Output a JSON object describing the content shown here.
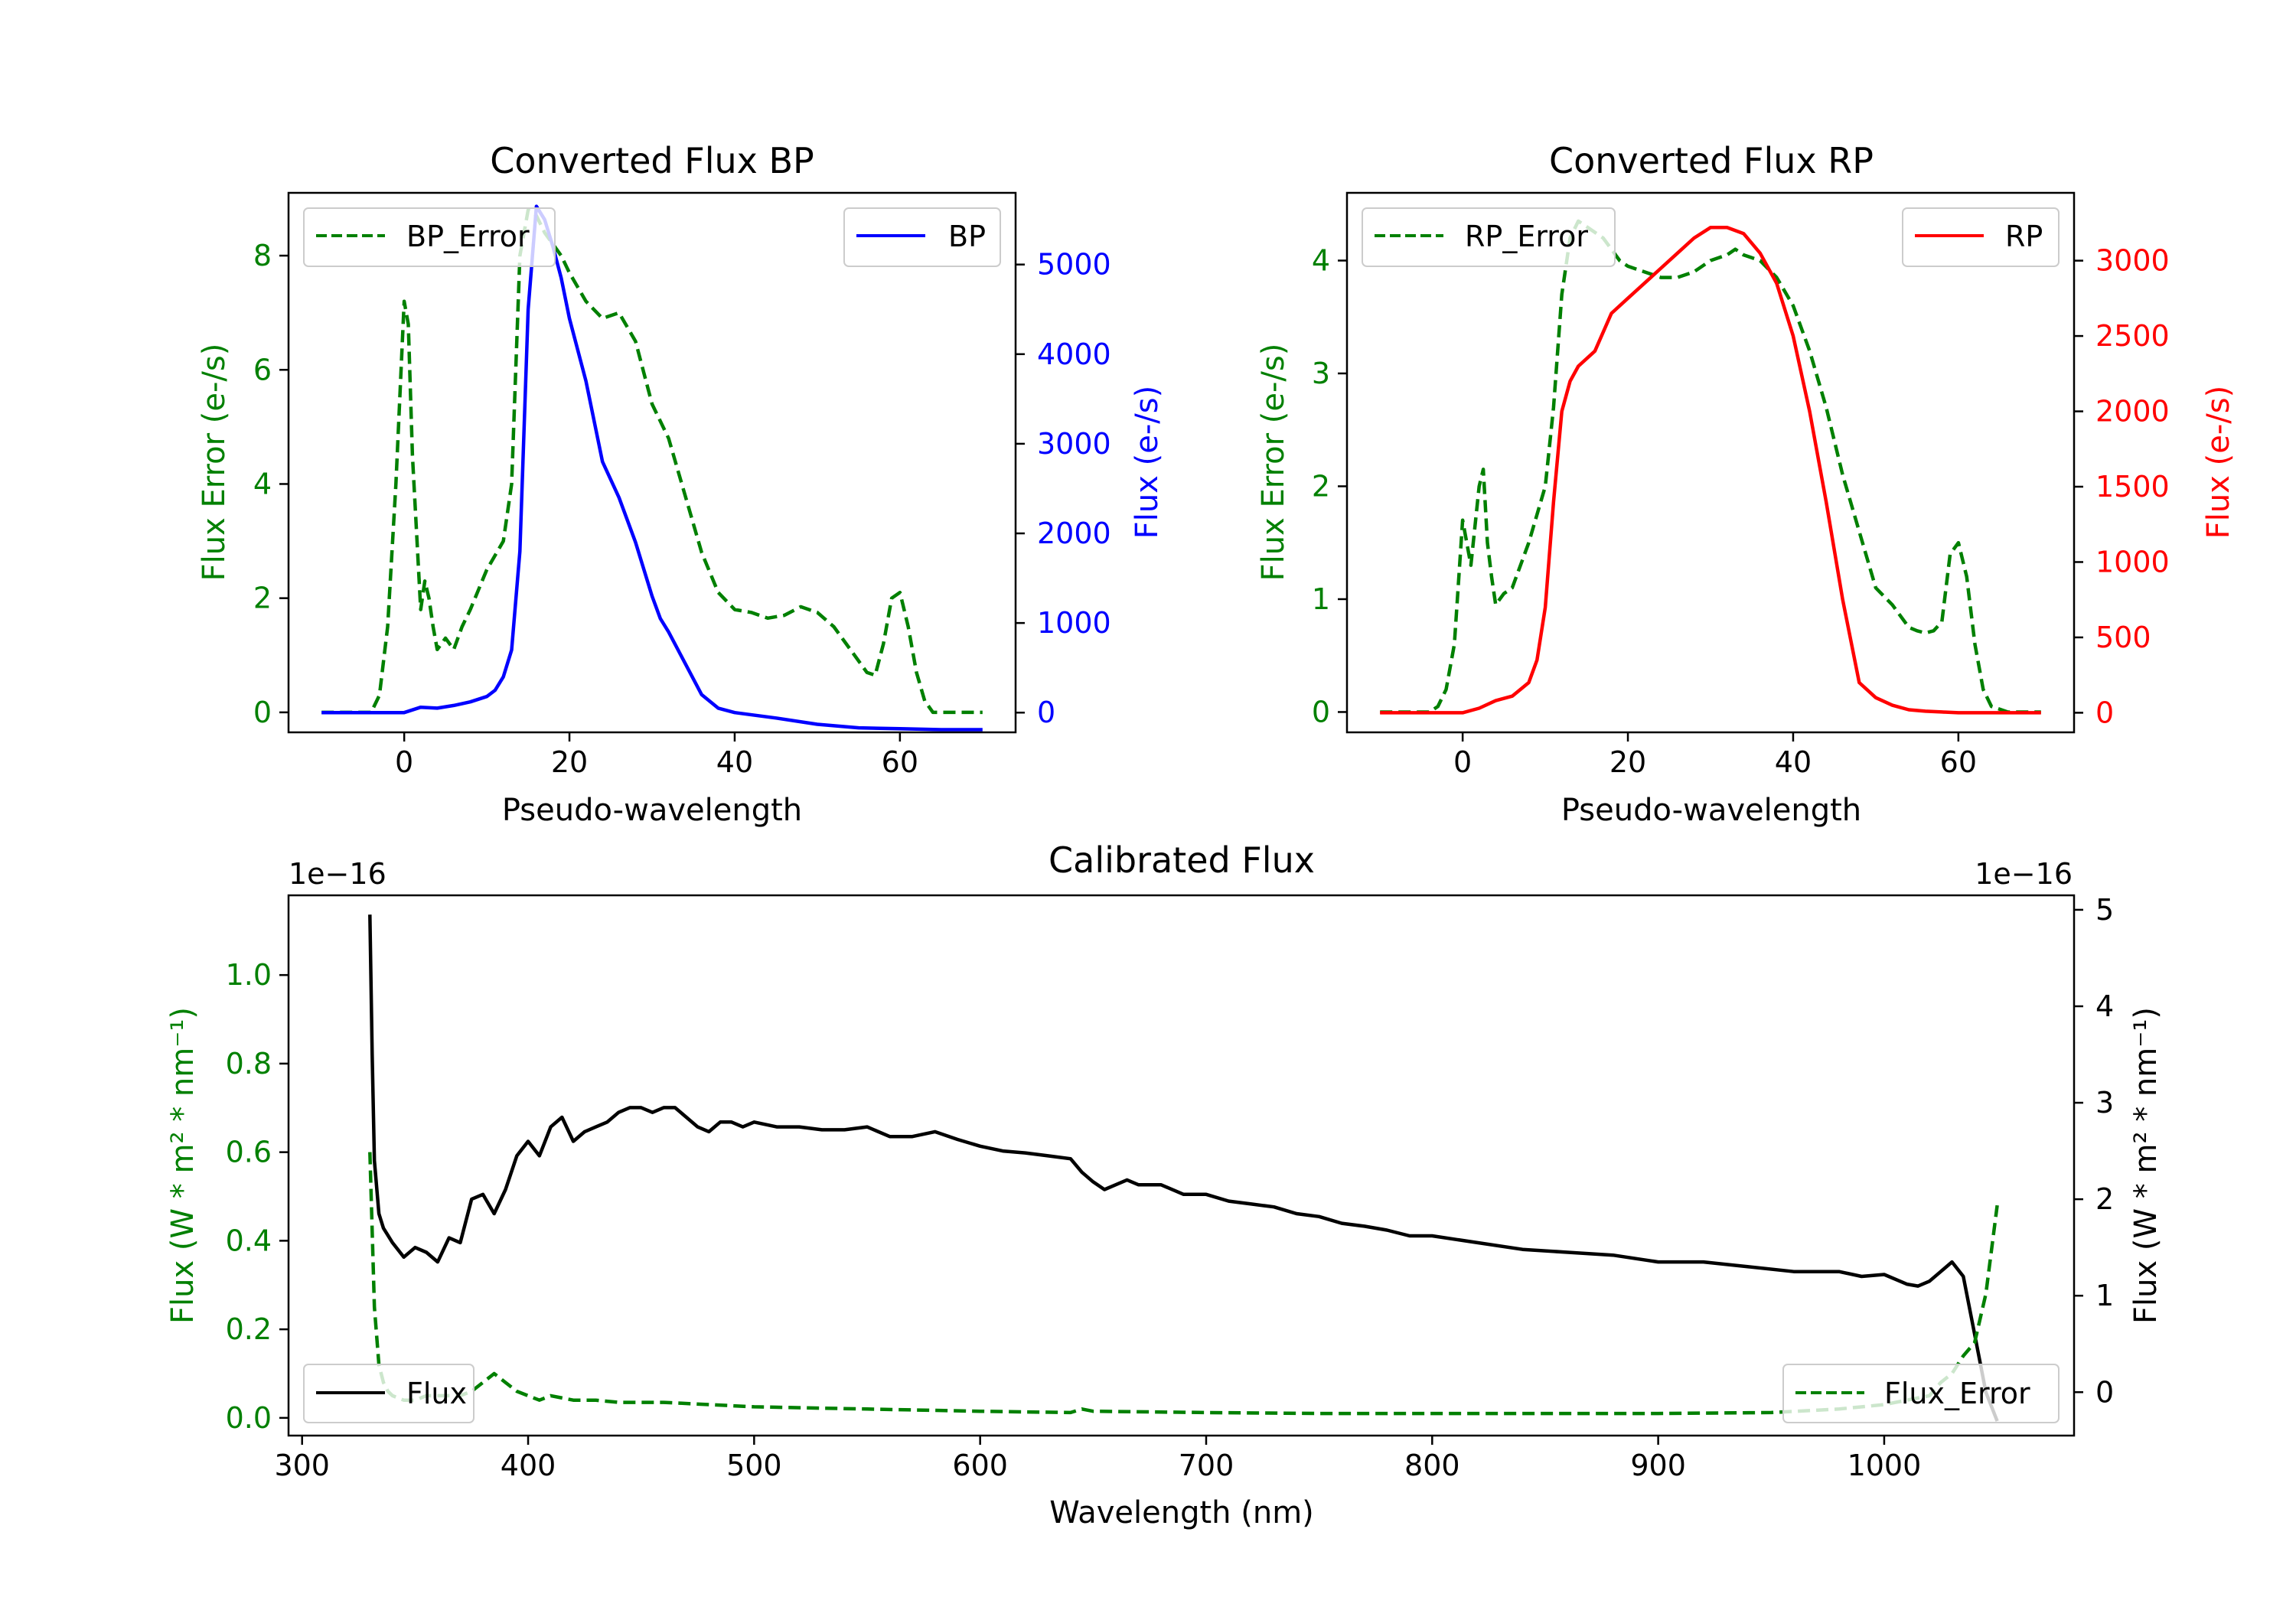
{
  "figure": {
    "background": "#ffffff"
  },
  "chart_data": [
    {
      "id": "bp",
      "type": "line",
      "title": "Converted Flux BP",
      "xlabel": "Pseudo-wavelength",
      "ylabel_left": "Flux Error (e-/s)",
      "ylabel_right": "Flux (e-/s)",
      "xlim": [
        -14,
        74
      ],
      "ylim_left": [
        -0.35,
        9.1
      ],
      "ylim_right": [
        -220,
        5800
      ],
      "xticks": [
        "0",
        "20",
        "40",
        "60"
      ],
      "yticks_left": [
        "0",
        "2",
        "4",
        "6",
        "8"
      ],
      "yticks_right": [
        "0",
        "1000",
        "2000",
        "3000",
        "4000",
        "5000"
      ],
      "left_color": "#008000",
      "right_color": "#0000ff",
      "series": [
        {
          "name": "BP_Error",
          "axis": "left",
          "style": "dashed",
          "color": "#008000",
          "x": [
            -10,
            -4,
            -3,
            -2,
            -1,
            0,
            0.5,
            1,
            2,
            2.5,
            3,
            3.5,
            4,
            5,
            6,
            7,
            8,
            10,
            12,
            13,
            14,
            15,
            16,
            17,
            18,
            19,
            20,
            22,
            24,
            26,
            28,
            30,
            32,
            34,
            36,
            38,
            40,
            42,
            44,
            46,
            48,
            50,
            52,
            54,
            55,
            56,
            57,
            58,
            59,
            60,
            61,
            62,
            63,
            64,
            66,
            68,
            70
          ],
          "y": [
            0,
            0,
            0.3,
            1.5,
            4,
            7.2,
            6.8,
            4.5,
            1.8,
            2.3,
            2.0,
            1.5,
            1.1,
            1.3,
            1.1,
            1.5,
            1.8,
            2.5,
            3.0,
            4.0,
            8.0,
            8.8,
            8.7,
            8.4,
            8.2,
            8.0,
            7.7,
            7.2,
            6.9,
            7.0,
            6.5,
            5.4,
            4.8,
            3.8,
            2.8,
            2.1,
            1.8,
            1.75,
            1.65,
            1.7,
            1.85,
            1.75,
            1.5,
            1.1,
            0.9,
            0.7,
            0.65,
            1.2,
            2.0,
            2.1,
            1.5,
            0.7,
            0.2,
            0,
            0,
            0,
            0
          ]
        },
        {
          "name": "BP",
          "axis": "right",
          "style": "solid",
          "color": "#0000ff",
          "x": [
            -10,
            -5,
            0,
            2,
            4,
            6,
            8,
            10,
            11,
            12,
            13,
            14,
            15,
            16,
            17,
            18,
            19,
            20,
            22,
            24,
            26,
            28,
            30,
            31,
            32,
            34,
            36,
            38,
            40,
            45,
            50,
            55,
            60,
            65,
            70
          ],
          "y": [
            0,
            0,
            0,
            60,
            50,
            80,
            120,
            180,
            250,
            400,
            700,
            1800,
            4500,
            5650,
            5500,
            5200,
            4850,
            4400,
            3700,
            2800,
            2400,
            1900,
            1300,
            1050,
            900,
            550,
            200,
            50,
            0,
            -60,
            -130,
            -170,
            -180,
            -190,
            -190
          ]
        }
      ],
      "legend": [
        {
          "label": "BP_Error",
          "style": "dashed",
          "color": "#008000",
          "position": "upper-left"
        },
        {
          "label": "BP",
          "style": "solid",
          "color": "#0000ff",
          "position": "upper-right"
        }
      ]
    },
    {
      "id": "rp",
      "type": "line",
      "title": "Converted Flux RP",
      "xlabel": "Pseudo-wavelength",
      "ylabel_left": "Flux Error (e-/s)",
      "ylabel_right": "Flux (e-/s)",
      "xlim": [
        -14,
        74
      ],
      "ylim_left": [
        -0.18,
        4.6
      ],
      "ylim_right": [
        -130,
        3450
      ],
      "xticks": [
        "0",
        "20",
        "40",
        "60"
      ],
      "yticks_left": [
        "0",
        "1",
        "2",
        "3",
        "4"
      ],
      "yticks_right": [
        "0",
        "500",
        "1000",
        "1500",
        "2000",
        "2500",
        "3000"
      ],
      "left_color": "#008000",
      "right_color": "#ff0000",
      "series": [
        {
          "name": "RP_Error",
          "axis": "left",
          "style": "dashed",
          "color": "#008000",
          "x": [
            -10,
            -4,
            -3,
            -2,
            -1,
            0,
            0.5,
            1,
            2,
            2.5,
            3,
            3.5,
            4,
            5,
            6,
            8,
            10,
            11,
            12,
            13,
            14,
            15,
            16,
            17,
            18,
            19,
            20,
            22,
            24,
            26,
            28,
            30,
            32,
            33,
            34,
            36,
            38,
            40,
            42,
            44,
            46,
            48,
            50,
            52,
            54,
            55,
            56,
            57,
            58,
            59,
            60,
            61,
            62,
            63,
            64,
            66,
            70
          ],
          "y": [
            0,
            0,
            0.05,
            0.2,
            0.6,
            1.7,
            1.5,
            1.3,
            2.0,
            2.15,
            1.5,
            1.2,
            0.95,
            1.05,
            1.1,
            1.5,
            2.0,
            2.7,
            3.7,
            4.2,
            4.35,
            4.3,
            4.25,
            4.2,
            4.1,
            4.0,
            3.95,
            3.9,
            3.85,
            3.85,
            3.9,
            4.0,
            4.05,
            4.1,
            4.05,
            4.0,
            3.85,
            3.6,
            3.2,
            2.7,
            2.1,
            1.6,
            1.1,
            0.95,
            0.75,
            0.72,
            0.7,
            0.72,
            0.8,
            1.4,
            1.5,
            1.2,
            0.6,
            0.2,
            0.05,
            0,
            0
          ]
        },
        {
          "name": "RP",
          "axis": "right",
          "style": "solid",
          "color": "#ff0000",
          "x": [
            -10,
            -5,
            0,
            2,
            4,
            6,
            8,
            9,
            10,
            11,
            12,
            13,
            14,
            16,
            18,
            20,
            22,
            24,
            26,
            28,
            30,
            32,
            34,
            36,
            38,
            40,
            42,
            44,
            46,
            48,
            50,
            52,
            54,
            56,
            58,
            60,
            62,
            66,
            70
          ],
          "y": [
            0,
            0,
            0,
            30,
            80,
            110,
            200,
            350,
            700,
            1400,
            2000,
            2200,
            2300,
            2400,
            2650,
            2750,
            2850,
            2950,
            3050,
            3150,
            3220,
            3220,
            3180,
            3050,
            2850,
            2500,
            2000,
            1400,
            750,
            200,
            100,
            50,
            20,
            10,
            5,
            0,
            0,
            0,
            0
          ]
        }
      ],
      "legend": [
        {
          "label": "RP_Error",
          "style": "dashed",
          "color": "#008000",
          "position": "upper-left"
        },
        {
          "label": "RP",
          "style": "solid",
          "color": "#ff0000",
          "position": "upper-right"
        }
      ]
    },
    {
      "id": "cal",
      "type": "line",
      "title": "Calibrated Flux",
      "xlabel": "Wavelength (nm)",
      "ylabel_left": "Flux (W * m² * nm⁻¹)",
      "ylabel_right": "Flux (W * m² * nm⁻¹)",
      "offset_left": "1e−16",
      "offset_right": "1e−16",
      "xlim": [
        294,
        1084
      ],
      "ylim_left": [
        -0.04,
        1.18
      ],
      "ylim_right": [
        -0.45,
        5.15
      ],
      "xticks": [
        "300",
        "400",
        "500",
        "600",
        "700",
        "800",
        "900",
        "1000"
      ],
      "yticks_left": [
        "0.0",
        "0.2",
        "0.4",
        "0.6",
        "0.8",
        "1.0"
      ],
      "yticks_right": [
        "0",
        "1",
        "2",
        "3",
        "4",
        "5"
      ],
      "left_color": "#008000",
      "right_color": "#000000",
      "series": [
        {
          "name": "Flux",
          "axis": "right",
          "style": "solid",
          "color": "#000000",
          "x": [
            330,
            331,
            332,
            334,
            336,
            340,
            345,
            350,
            355,
            360,
            365,
            370,
            375,
            380,
            385,
            390,
            395,
            400,
            405,
            410,
            415,
            420,
            425,
            430,
            435,
            440,
            445,
            450,
            455,
            460,
            465,
            470,
            475,
            480,
            485,
            490,
            495,
            500,
            510,
            520,
            530,
            540,
            550,
            560,
            570,
            580,
            590,
            600,
            610,
            620,
            630,
            640,
            645,
            650,
            655,
            660,
            665,
            670,
            680,
            690,
            700,
            710,
            720,
            730,
            740,
            750,
            760,
            770,
            780,
            790,
            800,
            820,
            840,
            860,
            880,
            900,
            920,
            940,
            960,
            980,
            990,
            1000,
            1010,
            1015,
            1020,
            1025,
            1030,
            1035,
            1040,
            1045,
            1050
          ],
          "y": [
            4.95,
            3.5,
            2.4,
            1.85,
            1.7,
            1.55,
            1.4,
            1.5,
            1.45,
            1.35,
            1.6,
            1.55,
            2.0,
            2.05,
            1.85,
            2.1,
            2.45,
            2.6,
            2.45,
            2.75,
            2.85,
            2.6,
            2.7,
            2.75,
            2.8,
            2.9,
            2.95,
            2.95,
            2.9,
            2.95,
            2.95,
            2.85,
            2.75,
            2.7,
            2.8,
            2.8,
            2.75,
            2.8,
            2.75,
            2.75,
            2.72,
            2.72,
            2.75,
            2.65,
            2.65,
            2.7,
            2.62,
            2.55,
            2.5,
            2.48,
            2.45,
            2.42,
            2.28,
            2.18,
            2.1,
            2.15,
            2.2,
            2.15,
            2.15,
            2.05,
            2.05,
            1.98,
            1.95,
            1.92,
            1.85,
            1.82,
            1.75,
            1.72,
            1.68,
            1.62,
            1.62,
            1.55,
            1.48,
            1.45,
            1.42,
            1.35,
            1.35,
            1.3,
            1.25,
            1.25,
            1.2,
            1.22,
            1.12,
            1.1,
            1.15,
            1.25,
            1.35,
            1.2,
            0.6,
            0,
            -0.3
          ]
        },
        {
          "name": "Flux_Error",
          "axis": "left",
          "style": "dashed",
          "color": "#008000",
          "x": [
            330,
            332,
            334,
            336,
            338,
            340,
            345,
            350,
            355,
            360,
            370,
            375,
            380,
            385,
            390,
            395,
            400,
            405,
            410,
            420,
            430,
            440,
            460,
            480,
            500,
            550,
            600,
            640,
            645,
            650,
            700,
            750,
            800,
            850,
            900,
            950,
            980,
            1000,
            1010,
            1020,
            1025,
            1030,
            1035,
            1040,
            1045,
            1050
          ],
          "y": [
            0.6,
            0.25,
            0.12,
            0.08,
            0.06,
            0.05,
            0.04,
            0.04,
            0.05,
            0.05,
            0.05,
            0.06,
            0.08,
            0.1,
            0.08,
            0.06,
            0.05,
            0.04,
            0.05,
            0.04,
            0.04,
            0.035,
            0.035,
            0.03,
            0.025,
            0.02,
            0.015,
            0.012,
            0.02,
            0.015,
            0.012,
            0.01,
            0.01,
            0.01,
            0.01,
            0.012,
            0.02,
            0.03,
            0.04,
            0.05,
            0.08,
            0.1,
            0.14,
            0.17,
            0.28,
            0.48
          ]
        }
      ],
      "legend": [
        {
          "label": "Flux",
          "style": "solid",
          "color": "#000000",
          "position": "lower-left"
        },
        {
          "label": "Flux_Error",
          "style": "dashed",
          "color": "#008000",
          "position": "lower-right"
        }
      ]
    }
  ]
}
